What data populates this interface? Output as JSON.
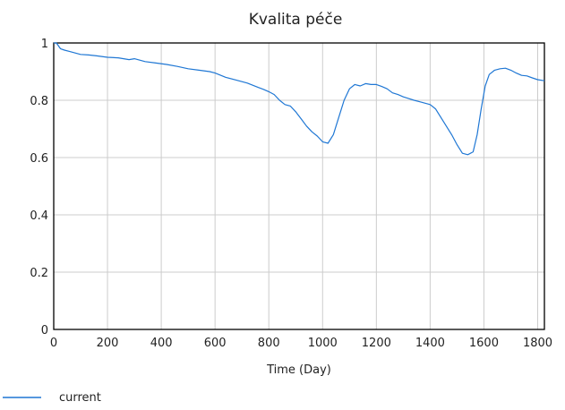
{
  "chart_data": {
    "type": "line",
    "title": "Kvalita péče",
    "xlabel": "Time (Day)",
    "ylabel": "",
    "xlim": [
      0,
      1825
    ],
    "ylim": [
      0,
      1
    ],
    "xticks": [
      0,
      200,
      400,
      600,
      800,
      1000,
      1200,
      1400,
      1600,
      1800
    ],
    "yticks": [
      0,
      0.2,
      0.4,
      0.6,
      0.8,
      1
    ],
    "xtick_labels": [
      "0",
      "200",
      "400",
      "600",
      "800",
      "1000",
      "1200",
      "1400",
      "1600",
      "1800"
    ],
    "ytick_labels": [
      "0",
      "0.2",
      "0.4",
      "0.6",
      "0.8",
      "1"
    ],
    "grid": true,
    "legend_position": "bottom-left",
    "series": [
      {
        "name": "current",
        "color": "#1f77d4",
        "x": [
          0,
          10,
          25,
          40,
          60,
          80,
          100,
          130,
          160,
          200,
          240,
          280,
          300,
          340,
          380,
          420,
          460,
          500,
          540,
          580,
          600,
          640,
          680,
          720,
          760,
          780,
          800,
          820,
          840,
          860,
          880,
          900,
          920,
          940,
          960,
          980,
          1000,
          1020,
          1040,
          1060,
          1080,
          1100,
          1120,
          1140,
          1160,
          1180,
          1200,
          1220,
          1240,
          1260,
          1280,
          1300,
          1320,
          1340,
          1360,
          1380,
          1400,
          1420,
          1440,
          1460,
          1480,
          1500,
          1520,
          1540,
          1560,
          1575,
          1590,
          1605,
          1620,
          1640,
          1660,
          1680,
          1700,
          1720,
          1740,
          1760,
          1780,
          1800,
          1825
        ],
        "values": [
          1.0,
          1.0,
          0.98,
          0.975,
          0.97,
          0.965,
          0.96,
          0.958,
          0.955,
          0.95,
          0.948,
          0.942,
          0.945,
          0.935,
          0.93,
          0.925,
          0.918,
          0.91,
          0.905,
          0.9,
          0.895,
          0.88,
          0.87,
          0.86,
          0.845,
          0.838,
          0.83,
          0.82,
          0.8,
          0.785,
          0.78,
          0.76,
          0.735,
          0.71,
          0.69,
          0.675,
          0.655,
          0.65,
          0.68,
          0.74,
          0.8,
          0.84,
          0.855,
          0.85,
          0.858,
          0.855,
          0.855,
          0.848,
          0.84,
          0.826,
          0.82,
          0.812,
          0.806,
          0.8,
          0.795,
          0.79,
          0.785,
          0.77,
          0.74,
          0.71,
          0.68,
          0.645,
          0.615,
          0.61,
          0.62,
          0.68,
          0.77,
          0.85,
          0.89,
          0.905,
          0.91,
          0.912,
          0.905,
          0.895,
          0.887,
          0.885,
          0.878,
          0.872,
          0.868
        ]
      }
    ]
  }
}
